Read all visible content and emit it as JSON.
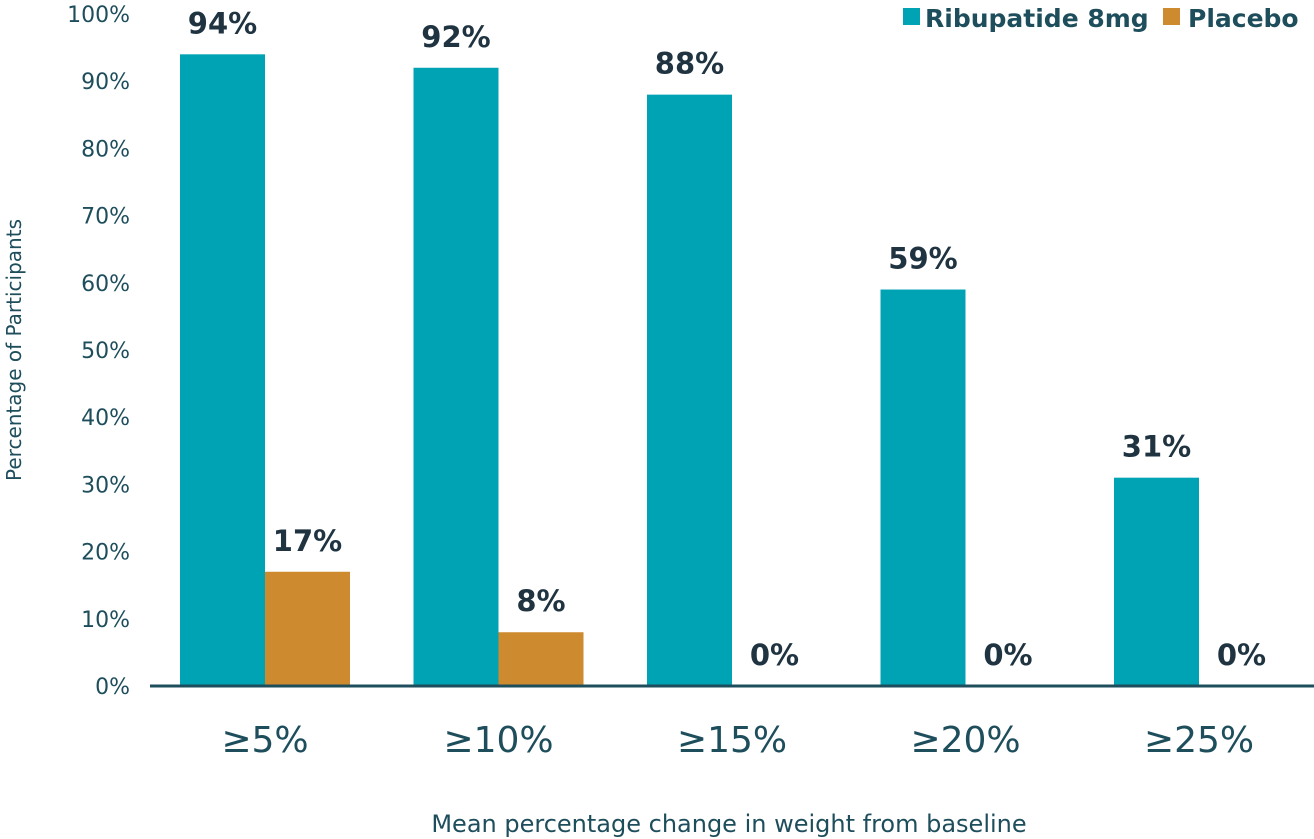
{
  "chart_data": {
    "type": "bar",
    "categories": [
      "≥5%",
      "≥10%",
      "≥15%",
      "≥20%",
      "≥25%"
    ],
    "series": [
      {
        "name": "Ribupatide 8mg",
        "values": [
          94,
          92,
          88,
          59,
          31
        ],
        "labels": [
          "94%",
          "92%",
          "88%",
          "59%",
          "31%"
        ],
        "color": "#00A3B4"
      },
      {
        "name": "Placebo",
        "values": [
          17,
          8,
          0,
          0,
          0
        ],
        "labels": [
          "17%",
          "8%",
          "0%",
          "0%",
          "0%"
        ],
        "color": "#CE8A2E"
      }
    ],
    "xlabel": "Mean percentage change in weight from baseline",
    "ylabel": "Percentage of Participants",
    "ylim": [
      0,
      100
    ],
    "yticks": [
      {
        "value": 0,
        "label": "0%"
      },
      {
        "value": 10,
        "label": "10%"
      },
      {
        "value": 20,
        "label": "20%"
      },
      {
        "value": 30,
        "label": "30%"
      },
      {
        "value": 40,
        "label": "40%"
      },
      {
        "value": 50,
        "label": "50%"
      },
      {
        "value": 60,
        "label": "60%"
      },
      {
        "value": 70,
        "label": "70%"
      },
      {
        "value": 80,
        "label": "80%"
      },
      {
        "value": 90,
        "label": "90%"
      },
      {
        "value": 100,
        "label": "100%"
      }
    ],
    "grid": false,
    "legend_position": "top-right",
    "axis_color": "#1E4E5C",
    "label_color": "#1F3340"
  }
}
